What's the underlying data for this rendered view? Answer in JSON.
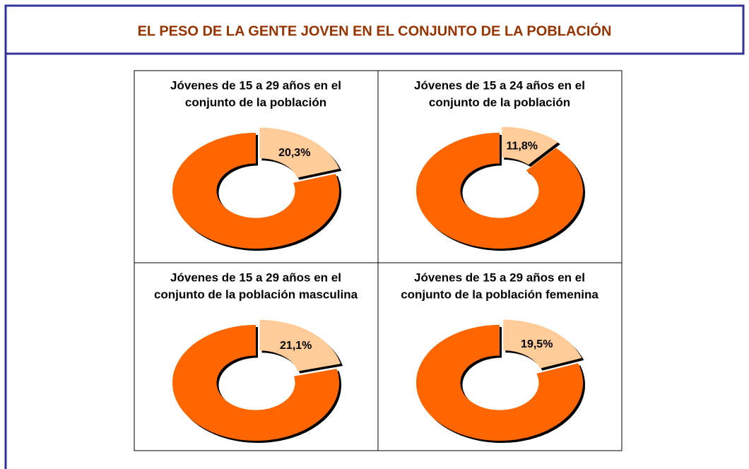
{
  "title": "EL PESO DE LA GENTE JOVEN EN EL CONJUNTO DE LA POBLACIÓN",
  "chart_data": [
    {
      "type": "donut",
      "title": [
        "Jóvenes de 15 a 29 años en el",
        "conjunto de la población"
      ],
      "values": [
        20.3,
        79.7
      ],
      "value_labels": [
        "20,3%",
        null
      ],
      "colors": [
        "#ffcc99",
        "#ff6600"
      ]
    },
    {
      "type": "donut",
      "title": [
        "Jóvenes de 15 a 24 años en el",
        "conjunto de la población"
      ],
      "values": [
        11.8,
        88.2
      ],
      "value_labels": [
        "11,8%",
        null
      ],
      "colors": [
        "#ffcc99",
        "#ff6600"
      ]
    },
    {
      "type": "donut",
      "title": [
        "Jóvenes de 15 a 29 años en el",
        "conjunto de la población masculina"
      ],
      "values": [
        21.1,
        78.9
      ],
      "value_labels": [
        "21,1%",
        null
      ],
      "colors": [
        "#ffcc99",
        "#ff6600"
      ]
    },
    {
      "type": "donut",
      "title": [
        "Jóvenes de 15 a 29 años en el",
        "conjunto de la población femenina"
      ],
      "values": [
        19.5,
        80.5
      ],
      "value_labels": [
        "19,5%",
        null
      ],
      "colors": [
        "#ffcc99",
        "#ff6600"
      ]
    }
  ]
}
